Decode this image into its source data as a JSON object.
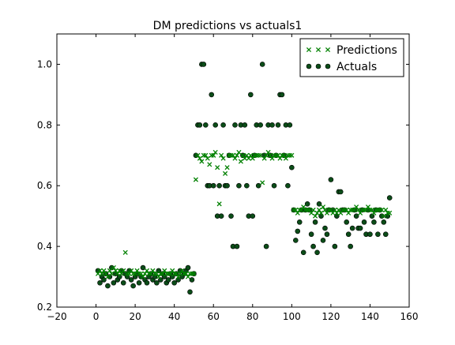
{
  "chart_data": {
    "type": "scatter",
    "title": "DM predictions vs actuals1",
    "xlabel": "",
    "ylabel": "",
    "xlim": [
      -20,
      160
    ],
    "ylim": [
      0.2,
      1.1
    ],
    "xticks": [
      -20,
      0,
      20,
      40,
      60,
      80,
      100,
      120,
      140,
      160
    ],
    "yticks": [
      0.2,
      0.4,
      0.6,
      0.8,
      1.0
    ],
    "xtick_labels": [
      "−20",
      "0",
      "20",
      "40",
      "60",
      "80",
      "100",
      "120",
      "140",
      "160"
    ],
    "ytick_labels": [
      "0.2",
      "0.4",
      "0.6",
      "0.8",
      "1.0"
    ],
    "grid": false,
    "legend_position": "top-right",
    "series": [
      {
        "name": "Predictions",
        "marker": "x",
        "color": "#008000",
        "x": [
          1,
          2,
          3,
          4,
          5,
          6,
          7,
          8,
          9,
          10,
          11,
          12,
          13,
          14,
          15,
          16,
          17,
          18,
          19,
          20,
          21,
          22,
          23,
          24,
          25,
          26,
          27,
          28,
          29,
          30,
          31,
          32,
          33,
          34,
          35,
          36,
          37,
          38,
          39,
          40,
          41,
          42,
          43,
          44,
          45,
          46,
          47,
          48,
          49,
          50,
          51,
          52,
          53,
          54,
          55,
          56,
          57,
          58,
          59,
          60,
          61,
          62,
          63,
          64,
          65,
          66,
          67,
          68,
          69,
          70,
          71,
          72,
          73,
          74,
          75,
          76,
          77,
          78,
          79,
          80,
          81,
          82,
          83,
          84,
          85,
          86,
          87,
          88,
          89,
          90,
          91,
          92,
          93,
          94,
          95,
          96,
          97,
          98,
          99,
          100,
          101,
          102,
          103,
          104,
          105,
          106,
          107,
          108,
          109,
          110,
          111,
          112,
          113,
          114,
          115,
          116,
          117,
          118,
          119,
          120,
          121,
          122,
          123,
          124,
          125,
          126,
          127,
          128,
          129,
          130,
          131,
          132,
          133,
          134,
          135,
          136,
          137,
          138,
          139,
          140,
          141,
          142,
          143,
          144,
          145,
          146,
          147,
          148,
          149,
          150
        ],
        "y": [
          0.31,
          0.32,
          0.31,
          0.32,
          0.31,
          0.3,
          0.32,
          0.31,
          0.33,
          0.32,
          0.31,
          0.32,
          0.31,
          0.32,
          0.38,
          0.31,
          0.31,
          0.32,
          0.31,
          0.31,
          0.32,
          0.31,
          0.31,
          0.3,
          0.31,
          0.32,
          0.31,
          0.31,
          0.32,
          0.31,
          0.31,
          0.3,
          0.31,
          0.31,
          0.32,
          0.31,
          0.31,
          0.31,
          0.32,
          0.31,
          0.31,
          0.3,
          0.31,
          0.32,
          0.31,
          0.31,
          0.3,
          0.31,
          0.31,
          0.31,
          0.62,
          0.7,
          0.69,
          0.68,
          0.7,
          0.7,
          0.69,
          0.67,
          0.7,
          0.7,
          0.71,
          0.66,
          0.54,
          0.7,
          0.69,
          0.64,
          0.66,
          0.7,
          0.7,
          0.7,
          0.69,
          0.7,
          0.71,
          0.68,
          0.7,
          0.69,
          0.7,
          0.69,
          0.7,
          0.69,
          0.7,
          0.7,
          0.7,
          0.7,
          0.61,
          0.69,
          0.7,
          0.71,
          0.7,
          0.69,
          0.7,
          0.7,
          0.7,
          0.69,
          0.7,
          0.7,
          0.69,
          0.7,
          0.7,
          0.7,
          0.52,
          0.52,
          0.51,
          0.52,
          0.52,
          0.53,
          0.52,
          0.52,
          0.52,
          0.51,
          0.52,
          0.5,
          0.51,
          0.52,
          0.51,
          0.53,
          0.52,
          0.51,
          0.52,
          0.52,
          0.51,
          0.52,
          0.51,
          0.52,
          0.51,
          0.52,
          0.52,
          0.52,
          0.51,
          0.52,
          0.52,
          0.52,
          0.53,
          0.52,
          0.51,
          0.52,
          0.52,
          0.52,
          0.53,
          0.52,
          0.52,
          0.51,
          0.52,
          0.52,
          0.52,
          0.52,
          0.5,
          0.52,
          0.51,
          0.51
        ]
      },
      {
        "name": "Actuals",
        "marker": "o",
        "color": "#0b4d18",
        "x": [
          1,
          2,
          3,
          4,
          5,
          6,
          7,
          8,
          9,
          10,
          11,
          12,
          13,
          14,
          15,
          16,
          17,
          18,
          19,
          20,
          21,
          22,
          23,
          24,
          25,
          26,
          27,
          28,
          29,
          30,
          31,
          32,
          33,
          34,
          35,
          36,
          37,
          38,
          39,
          40,
          41,
          42,
          43,
          44,
          45,
          46,
          47,
          48,
          49,
          50,
          51,
          52,
          53,
          54,
          55,
          56,
          57,
          58,
          59,
          60,
          61,
          62,
          63,
          64,
          65,
          66,
          67,
          68,
          69,
          70,
          71,
          72,
          73,
          74,
          75,
          76,
          77,
          78,
          79,
          80,
          81,
          82,
          83,
          84,
          85,
          86,
          87,
          88,
          89,
          90,
          91,
          92,
          93,
          94,
          95,
          96,
          97,
          98,
          99,
          100,
          101,
          102,
          103,
          104,
          105,
          106,
          107,
          108,
          109,
          110,
          111,
          112,
          113,
          114,
          115,
          116,
          117,
          118,
          119,
          120,
          121,
          122,
          123,
          124,
          125,
          126,
          127,
          128,
          129,
          130,
          131,
          132,
          133,
          134,
          135,
          136,
          137,
          138,
          139,
          140,
          141,
          142,
          143,
          144,
          145,
          146,
          147,
          148,
          149,
          150
        ],
        "y": [
          0.32,
          0.28,
          0.3,
          0.29,
          0.31,
          0.27,
          0.3,
          0.33,
          0.28,
          0.31,
          0.29,
          0.3,
          0.32,
          0.28,
          0.31,
          0.3,
          0.32,
          0.29,
          0.27,
          0.3,
          0.31,
          0.28,
          0.3,
          0.33,
          0.29,
          0.28,
          0.3,
          0.31,
          0.29,
          0.3,
          0.28,
          0.32,
          0.29,
          0.31,
          0.3,
          0.28,
          0.29,
          0.31,
          0.3,
          0.28,
          0.31,
          0.29,
          0.32,
          0.3,
          0.31,
          0.32,
          0.33,
          0.25,
          0.29,
          0.31,
          0.7,
          0.8,
          0.8,
          1.0,
          1.0,
          0.8,
          0.6,
          0.6,
          0.9,
          0.6,
          0.8,
          0.5,
          0.6,
          0.5,
          0.8,
          0.6,
          0.6,
          0.7,
          0.5,
          0.4,
          0.8,
          0.4,
          0.6,
          0.8,
          0.7,
          0.8,
          0.6,
          0.5,
          0.9,
          0.5,
          0.7,
          0.8,
          0.6,
          0.8,
          1.0,
          0.7,
          0.4,
          0.8,
          0.7,
          0.8,
          0.6,
          0.7,
          0.8,
          0.9,
          0.9,
          0.7,
          0.8,
          0.6,
          0.8,
          0.66,
          0.52,
          0.42,
          0.45,
          0.48,
          0.52,
          0.38,
          0.52,
          0.54,
          0.52,
          0.44,
          0.4,
          0.48,
          0.38,
          0.54,
          0.5,
          0.42,
          0.46,
          0.44,
          0.52,
          0.62,
          0.52,
          0.4,
          0.5,
          0.58,
          0.58,
          0.52,
          0.52,
          0.48,
          0.44,
          0.4,
          0.46,
          0.52,
          0.5,
          0.46,
          0.46,
          0.52,
          0.48,
          0.44,
          0.52,
          0.44,
          0.5,
          0.48,
          0.52,
          0.44,
          0.52,
          0.5,
          0.48,
          0.44,
          0.5,
          0.56
        ]
      }
    ]
  }
}
